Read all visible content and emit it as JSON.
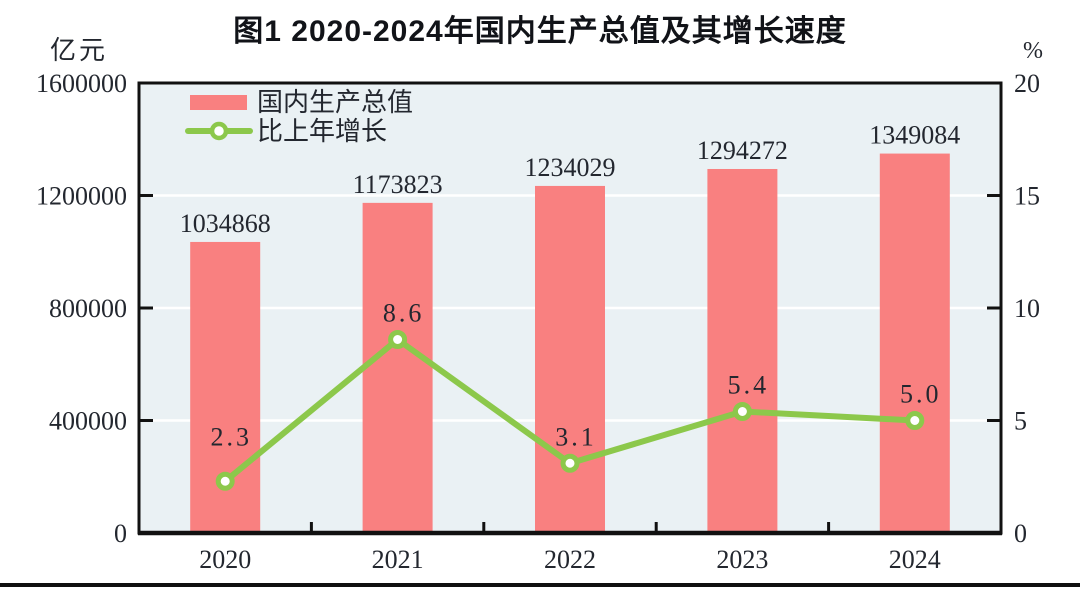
{
  "figure": {
    "title": "图1  2020-2024年国内生产总值及其增长速度",
    "left_axis_unit": "亿元",
    "right_axis_unit": "%"
  },
  "chart_data": {
    "type": "combo",
    "title": "图1  2020-2024年国内生产总值及其增长速度",
    "categories": [
      "2020",
      "2021",
      "2022",
      "2023",
      "2024"
    ],
    "series": [
      {
        "name": "国内生产总值",
        "type": "bar",
        "axis": "left",
        "color": "#F98080",
        "values": [
          1034868,
          1173823,
          1234029,
          1294272,
          1349084
        ],
        "value_labels": [
          "1034868",
          "1173823",
          "1234029",
          "1294272",
          "1349084"
        ]
      },
      {
        "name": "比上年增长",
        "type": "line",
        "axis": "right",
        "color": "#8CC84B",
        "marker": "circle-white-fill",
        "values": [
          2.3,
          8.6,
          3.1,
          5.4,
          5.0
        ],
        "value_labels": [
          "2.3",
          "8.6",
          "3.1",
          "5.4",
          "5.0"
        ]
      }
    ],
    "left_axis": {
      "unit": "亿元",
      "min": 0,
      "max": 1600000,
      "ticks": [
        0,
        400000,
        800000,
        1200000,
        1600000
      ],
      "tick_labels": [
        "0",
        "400000",
        "800000",
        "1200000",
        "1600000"
      ]
    },
    "right_axis": {
      "unit": "%",
      "min": 0,
      "max": 20,
      "ticks": [
        0,
        5,
        10,
        15,
        20
      ],
      "tick_labels": [
        "0",
        "5",
        "10",
        "15",
        "20"
      ]
    },
    "legend": {
      "position": "inside-top-left",
      "entries": [
        "国内生产总值",
        "比上年增长"
      ]
    },
    "plot_background": "#EAF1F4",
    "gridlines": {
      "orientation": "horizontal",
      "color": "#FFFFFF"
    },
    "text_color": "#23272F"
  }
}
